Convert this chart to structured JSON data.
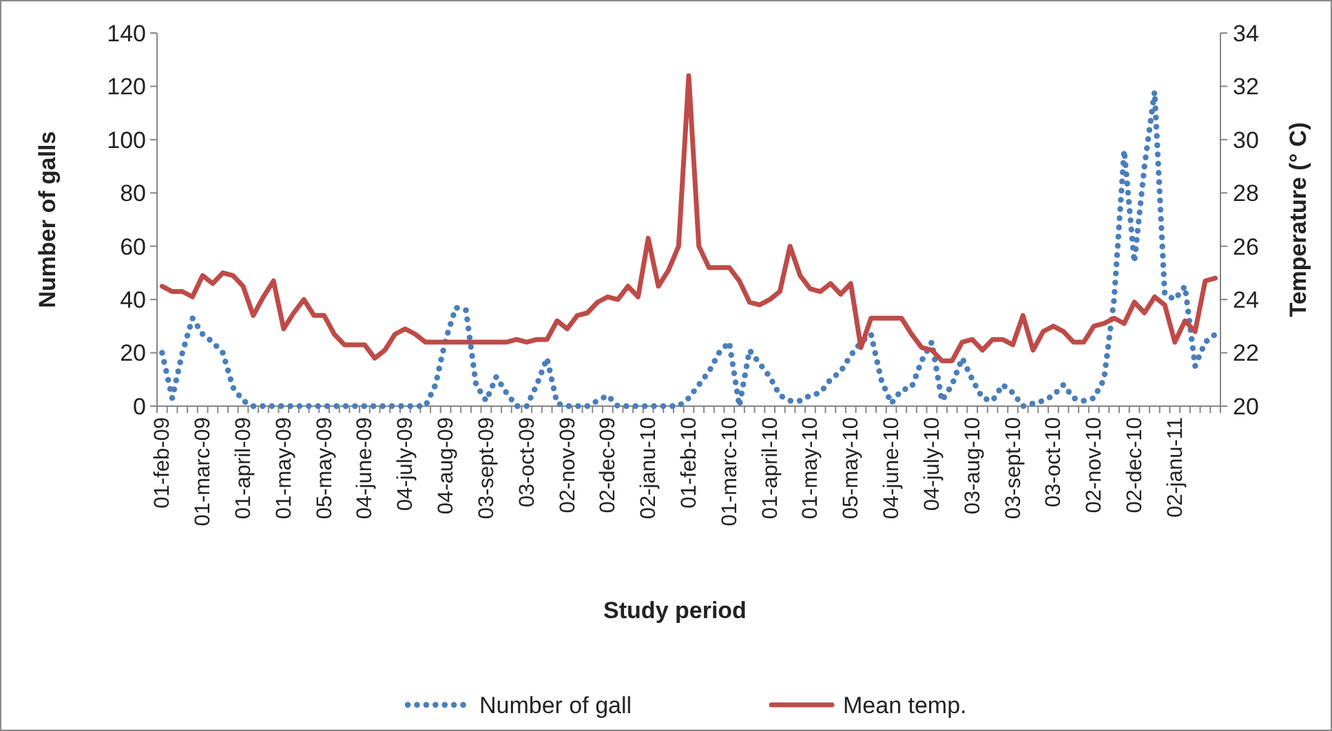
{
  "chart_data": {
    "type": "line",
    "xlabel": "Study period",
    "ylabel": "Number of galls",
    "y2label": "Temperature (° C)",
    "categories": [
      "01-feb-09",
      null,
      null,
      null,
      "01-marc-09",
      null,
      null,
      null,
      "01-april-09",
      null,
      null,
      null,
      "01-may-09",
      null,
      null,
      null,
      "05-may-09",
      null,
      null,
      null,
      "04-june-09",
      null,
      null,
      null,
      "04-july-09",
      null,
      null,
      null,
      "04-aug-09",
      null,
      null,
      null,
      "03-sept-09",
      null,
      null,
      null,
      "03-oct-09",
      null,
      null,
      null,
      "02-nov-09",
      null,
      null,
      null,
      "02-dec-09",
      null,
      null,
      null,
      "02-janu-10",
      null,
      null,
      null,
      "01-feb-10",
      null,
      null,
      null,
      "01-marc-10",
      null,
      null,
      null,
      "01-april-10",
      null,
      null,
      null,
      "01-may-10",
      null,
      null,
      null,
      "05-may-10",
      null,
      null,
      null,
      "04-june-10",
      null,
      null,
      null,
      "04-july-10",
      null,
      null,
      null,
      "03-aug-10",
      null,
      null,
      null,
      "03-sept-10",
      null,
      null,
      null,
      "03-oct-10",
      null,
      null,
      null,
      "02-nov-10",
      null,
      null,
      null,
      "02-dec-10",
      null,
      null,
      null,
      "02-janu-11",
      null,
      null,
      null,
      null
    ],
    "series": [
      {
        "name": "Number of gall",
        "color": "#4a7ebb",
        "line_style": "dotted",
        "axis": "y",
        "values": [
          20,
          3,
          20,
          33,
          27,
          24,
          20,
          7,
          2,
          0,
          0,
          0,
          0,
          0,
          0,
          0,
          0,
          0,
          0,
          0,
          0,
          0,
          0,
          0,
          0,
          0,
          0,
          8,
          25,
          37,
          36,
          8,
          2,
          11,
          5,
          0,
          0,
          8,
          18,
          1,
          0,
          0,
          0,
          2,
          4,
          0,
          0,
          0,
          0,
          0,
          0,
          0,
          3,
          8,
          13,
          20,
          24,
          0,
          21,
          16,
          11,
          4,
          2,
          2,
          4,
          5,
          10,
          13,
          19,
          24,
          27,
          10,
          1,
          6,
          7,
          17,
          24,
          2,
          8,
          18,
          10,
          3,
          2,
          8,
          5,
          0,
          1,
          2,
          4,
          8,
          3,
          2,
          3,
          10,
          40,
          96,
          54,
          90,
          118,
          42,
          40,
          45,
          15,
          24,
          27
        ]
      },
      {
        "name": "Mean temp.",
        "color": "#be4b48",
        "line_style": "solid",
        "axis": "y2",
        "values": [
          24.5,
          24.3,
          24.3,
          24.1,
          24.9,
          24.6,
          25.0,
          24.9,
          24.5,
          23.4,
          24.1,
          24.7,
          22.9,
          23.5,
          24.0,
          23.4,
          23.4,
          22.7,
          22.3,
          22.3,
          22.3,
          21.8,
          22.1,
          22.7,
          22.9,
          22.7,
          22.4,
          22.4,
          22.4,
          22.4,
          22.4,
          22.4,
          22.4,
          22.4,
          22.4,
          22.5,
          22.4,
          22.5,
          22.5,
          23.2,
          22.9,
          23.4,
          23.5,
          23.9,
          24.1,
          24.0,
          24.5,
          24.1,
          26.3,
          24.5,
          25.1,
          26.0,
          32.4,
          26.0,
          25.2,
          25.2,
          25.2,
          24.7,
          23.9,
          23.8,
          24.0,
          24.3,
          26.0,
          24.9,
          24.4,
          24.3,
          24.6,
          24.2,
          24.6,
          22.2,
          23.3,
          23.3,
          23.3,
          23.3,
          22.7,
          22.2,
          22.1,
          21.7,
          21.7,
          22.4,
          22.5,
          22.1,
          22.5,
          22.5,
          22.3,
          23.4,
          22.1,
          22.8,
          23.0,
          22.8,
          22.4,
          22.4,
          23.0,
          23.1,
          23.3,
          23.1,
          23.9,
          23.5,
          24.1,
          23.8,
          22.4,
          23.2,
          22.8,
          24.7,
          24.8
        ]
      }
    ],
    "ylim": [
      0,
      140
    ],
    "yticks": [
      0,
      20,
      40,
      60,
      80,
      100,
      120,
      140
    ],
    "y2lim": [
      20,
      34
    ],
    "y2ticks": [
      20,
      22,
      24,
      26,
      28,
      30,
      32,
      34
    ],
    "grid": false,
    "legend": "bottom",
    "marker": "none"
  }
}
